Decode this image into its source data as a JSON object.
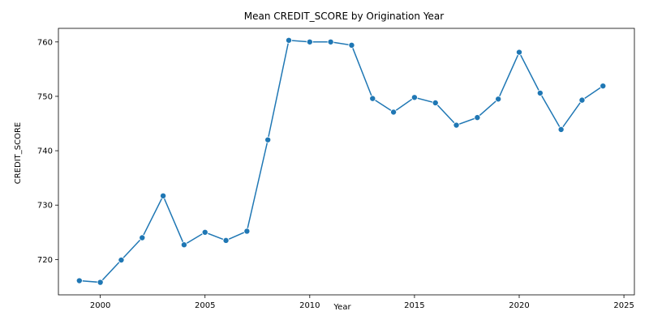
{
  "chart_data": {
    "type": "line",
    "title": "Mean CREDIT_SCORE by Origination Year",
    "xlabel": "Year",
    "ylabel": "CREDIT_SCORE",
    "xlim": [
      1998,
      2025.5
    ],
    "ylim": [
      713.5,
      762.5
    ],
    "xticks": [
      2000,
      2005,
      2010,
      2015,
      2020,
      2025
    ],
    "yticks": [
      720,
      730,
      740,
      750,
      760
    ],
    "grid": false,
    "legend": "none",
    "color": "#1f77b4",
    "x": [
      1999,
      2000,
      2001,
      2002,
      2003,
      2004,
      2005,
      2006,
      2007,
      2008,
      2009,
      2010,
      2011,
      2012,
      2013,
      2014,
      2015,
      2016,
      2017,
      2018,
      2019,
      2020,
      2021,
      2022,
      2023,
      2024
    ],
    "y": [
      716.1,
      715.8,
      719.9,
      724.0,
      731.7,
      722.7,
      725.0,
      723.5,
      725.2,
      742.0,
      760.3,
      760.0,
      760.0,
      759.4,
      749.6,
      747.1,
      749.8,
      748.8,
      744.7,
      746.1,
      749.5,
      758.1,
      750.6,
      743.9,
      749.3,
      751.9
    ]
  }
}
